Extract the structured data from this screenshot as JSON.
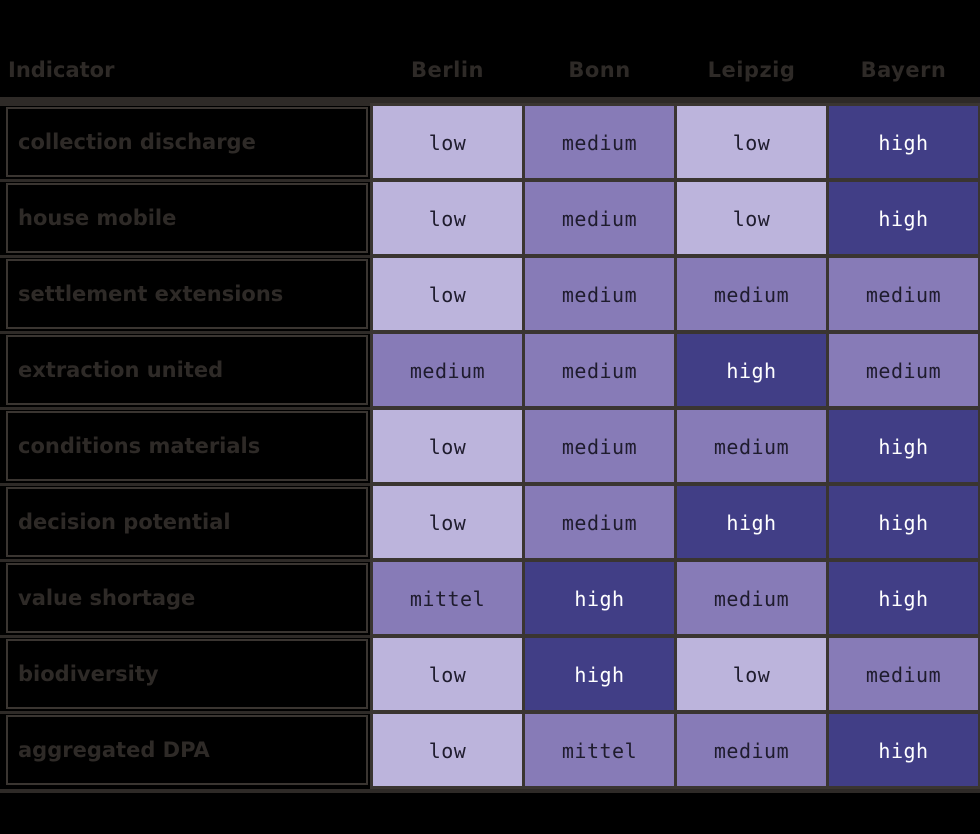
{
  "chart_data": {
    "type": "heatmap",
    "corner_label": "Indicator",
    "columns": [
      "Berlin",
      "Bonn",
      "Leipzig",
      "Bayern"
    ],
    "rows": [
      {
        "label": "collection discharge",
        "values": [
          "low",
          "medium",
          "low",
          "high"
        ]
      },
      {
        "label": "house mobile",
        "values": [
          "low",
          "medium",
          "low",
          "high"
        ]
      },
      {
        "label": "settlement extensions",
        "values": [
          "low",
          "medium",
          "medium",
          "medium"
        ]
      },
      {
        "label": "extraction united",
        "values": [
          "medium",
          "medium",
          "high",
          "medium"
        ]
      },
      {
        "label": "conditions materials",
        "values": [
          "low",
          "medium",
          "medium",
          "high"
        ]
      },
      {
        "label": "decision potential",
        "values": [
          "low",
          "medium",
          "high",
          "high"
        ]
      },
      {
        "label": "value shortage",
        "values": [
          "mittel",
          "high",
          "medium",
          "high"
        ]
      },
      {
        "label": "biodiversity",
        "values": [
          "low",
          "high",
          "low",
          "medium"
        ]
      },
      {
        "label": "aggregated DPA",
        "values": [
          "low",
          "mittel",
          "medium",
          "high"
        ]
      }
    ],
    "color_scale": {
      "low": "#bcb4dc",
      "medium": "#877bb7",
      "mittel": "#877bb7",
      "high": "#413e86"
    }
  }
}
